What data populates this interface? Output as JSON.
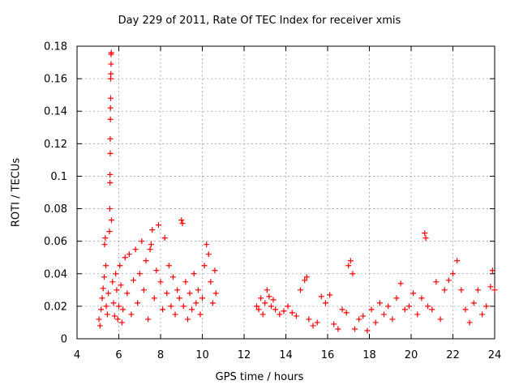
{
  "chart_data": {
    "type": "scatter",
    "title": "Day 229 of 2011, Rate Of TEC Index for receiver xmis",
    "xlabel": "GPS time / hours",
    "ylabel": "ROTI / TECUs",
    "xlim": [
      4,
      24
    ],
    "ylim": [
      0,
      0.18
    ],
    "x_ticks": [
      "4",
      "6",
      "8",
      "10",
      "12",
      "14",
      "16",
      "18",
      "20",
      "22",
      "24"
    ],
    "y_ticks": [
      "0",
      "0.02",
      "0.04",
      "0.06",
      "0.08",
      "0.1",
      "0.12",
      "0.14",
      "0.16",
      "0.18"
    ],
    "grid": true,
    "marker": "+",
    "color": "#ff0000",
    "series": [
      {
        "points": [
          [
            5.05,
            0.012
          ],
          [
            5.1,
            0.008
          ],
          [
            5.15,
            0.018
          ],
          [
            5.2,
            0.025
          ],
          [
            5.25,
            0.031
          ],
          [
            5.3,
            0.038
          ],
          [
            5.32,
            0.058
          ],
          [
            5.35,
            0.062
          ],
          [
            5.38,
            0.045
          ],
          [
            5.4,
            0.02
          ],
          [
            5.45,
            0.015
          ],
          [
            5.5,
            0.028
          ],
          [
            5.55,
            0.066
          ],
          [
            5.57,
            0.08
          ],
          [
            5.58,
            0.096
          ],
          [
            5.58,
            0.101
          ],
          [
            5.59,
            0.114
          ],
          [
            5.59,
            0.123
          ],
          [
            5.6,
            0.135
          ],
          [
            5.6,
            0.142
          ],
          [
            5.61,
            0.148
          ],
          [
            5.61,
            0.16
          ],
          [
            5.62,
            0.163
          ],
          [
            5.63,
            0.169
          ],
          [
            5.63,
            0.175
          ],
          [
            5.64,
            0.176
          ],
          [
            5.65,
            0.073
          ],
          [
            5.7,
            0.035
          ],
          [
            5.75,
            0.022
          ],
          [
            5.8,
            0.014
          ],
          [
            5.85,
            0.04
          ],
          [
            5.9,
            0.03
          ],
          [
            5.95,
            0.012
          ],
          [
            6.0,
            0.02
          ],
          [
            6.05,
            0.045
          ],
          [
            6.1,
            0.033
          ],
          [
            6.15,
            0.01
          ],
          [
            6.2,
            0.018
          ],
          [
            6.3,
            0.05
          ],
          [
            6.4,
            0.028
          ],
          [
            6.5,
            0.052
          ],
          [
            6.6,
            0.015
          ],
          [
            6.7,
            0.036
          ],
          [
            6.8,
            0.055
          ],
          [
            6.9,
            0.022
          ],
          [
            7.0,
            0.04
          ],
          [
            7.1,
            0.06
          ],
          [
            7.2,
            0.03
          ],
          [
            7.3,
            0.048
          ],
          [
            7.4,
            0.012
          ],
          [
            7.5,
            0.055
          ],
          [
            7.55,
            0.058
          ],
          [
            7.6,
            0.067
          ],
          [
            7.7,
            0.025
          ],
          [
            7.8,
            0.042
          ],
          [
            7.9,
            0.07
          ],
          [
            8.0,
            0.035
          ],
          [
            8.1,
            0.018
          ],
          [
            8.2,
            0.062
          ],
          [
            8.3,
            0.028
          ],
          [
            8.4,
            0.045
          ],
          [
            8.5,
            0.02
          ],
          [
            8.6,
            0.038
          ],
          [
            8.7,
            0.015
          ],
          [
            8.8,
            0.03
          ],
          [
            8.9,
            0.025
          ],
          [
            9.0,
            0.073
          ],
          [
            9.05,
            0.071
          ],
          [
            9.1,
            0.02
          ],
          [
            9.2,
            0.035
          ],
          [
            9.3,
            0.012
          ],
          [
            9.4,
            0.028
          ],
          [
            9.5,
            0.018
          ],
          [
            9.6,
            0.04
          ],
          [
            9.7,
            0.022
          ],
          [
            9.8,
            0.03
          ],
          [
            9.9,
            0.015
          ],
          [
            10.0,
            0.025
          ],
          [
            10.1,
            0.045
          ],
          [
            10.2,
            0.058
          ],
          [
            10.3,
            0.052
          ],
          [
            10.4,
            0.035
          ],
          [
            10.5,
            0.022
          ],
          [
            10.6,
            0.042
          ],
          [
            10.65,
            0.028
          ],
          [
            12.6,
            0.02
          ],
          [
            12.7,
            0.018
          ],
          [
            12.8,
            0.025
          ],
          [
            12.9,
            0.015
          ],
          [
            13.0,
            0.022
          ],
          [
            13.1,
            0.03
          ],
          [
            13.2,
            0.026
          ],
          [
            13.3,
            0.02
          ],
          [
            13.4,
            0.024
          ],
          [
            13.5,
            0.018
          ],
          [
            13.7,
            0.015
          ],
          [
            13.9,
            0.017
          ],
          [
            14.1,
            0.02
          ],
          [
            14.3,
            0.016
          ],
          [
            14.5,
            0.014
          ],
          [
            14.7,
            0.03
          ],
          [
            14.9,
            0.036
          ],
          [
            15.0,
            0.038
          ],
          [
            15.1,
            0.012
          ],
          [
            15.3,
            0.008
          ],
          [
            15.5,
            0.01
          ],
          [
            15.7,
            0.026
          ],
          [
            15.9,
            0.022
          ],
          [
            16.1,
            0.027
          ],
          [
            16.3,
            0.009
          ],
          [
            16.5,
            0.006
          ],
          [
            16.7,
            0.018
          ],
          [
            16.9,
            0.016
          ],
          [
            17.0,
            0.045
          ],
          [
            17.1,
            0.048
          ],
          [
            17.2,
            0.04
          ],
          [
            17.3,
            0.006
          ],
          [
            17.5,
            0.012
          ],
          [
            17.7,
            0.014
          ],
          [
            17.9,
            0.005
          ],
          [
            18.1,
            0.018
          ],
          [
            18.3,
            0.01
          ],
          [
            18.5,
            0.022
          ],
          [
            18.7,
            0.015
          ],
          [
            18.9,
            0.02
          ],
          [
            19.1,
            0.012
          ],
          [
            19.3,
            0.025
          ],
          [
            19.5,
            0.034
          ],
          [
            19.7,
            0.018
          ],
          [
            19.9,
            0.02
          ],
          [
            20.1,
            0.028
          ],
          [
            20.3,
            0.015
          ],
          [
            20.5,
            0.025
          ],
          [
            20.65,
            0.065
          ],
          [
            20.7,
            0.062
          ],
          [
            20.8,
            0.02
          ],
          [
            21.0,
            0.018
          ],
          [
            21.2,
            0.035
          ],
          [
            21.4,
            0.012
          ],
          [
            21.6,
            0.03
          ],
          [
            21.8,
            0.036
          ],
          [
            22.0,
            0.04
          ],
          [
            22.2,
            0.048
          ],
          [
            22.4,
            0.03
          ],
          [
            22.6,
            0.018
          ],
          [
            22.8,
            0.01
          ],
          [
            23.0,
            0.022
          ],
          [
            23.2,
            0.03
          ],
          [
            23.4,
            0.015
          ],
          [
            23.6,
            0.02
          ],
          [
            23.8,
            0.032
          ],
          [
            23.9,
            0.042
          ],
          [
            24.0,
            0.03
          ]
        ]
      }
    ]
  }
}
